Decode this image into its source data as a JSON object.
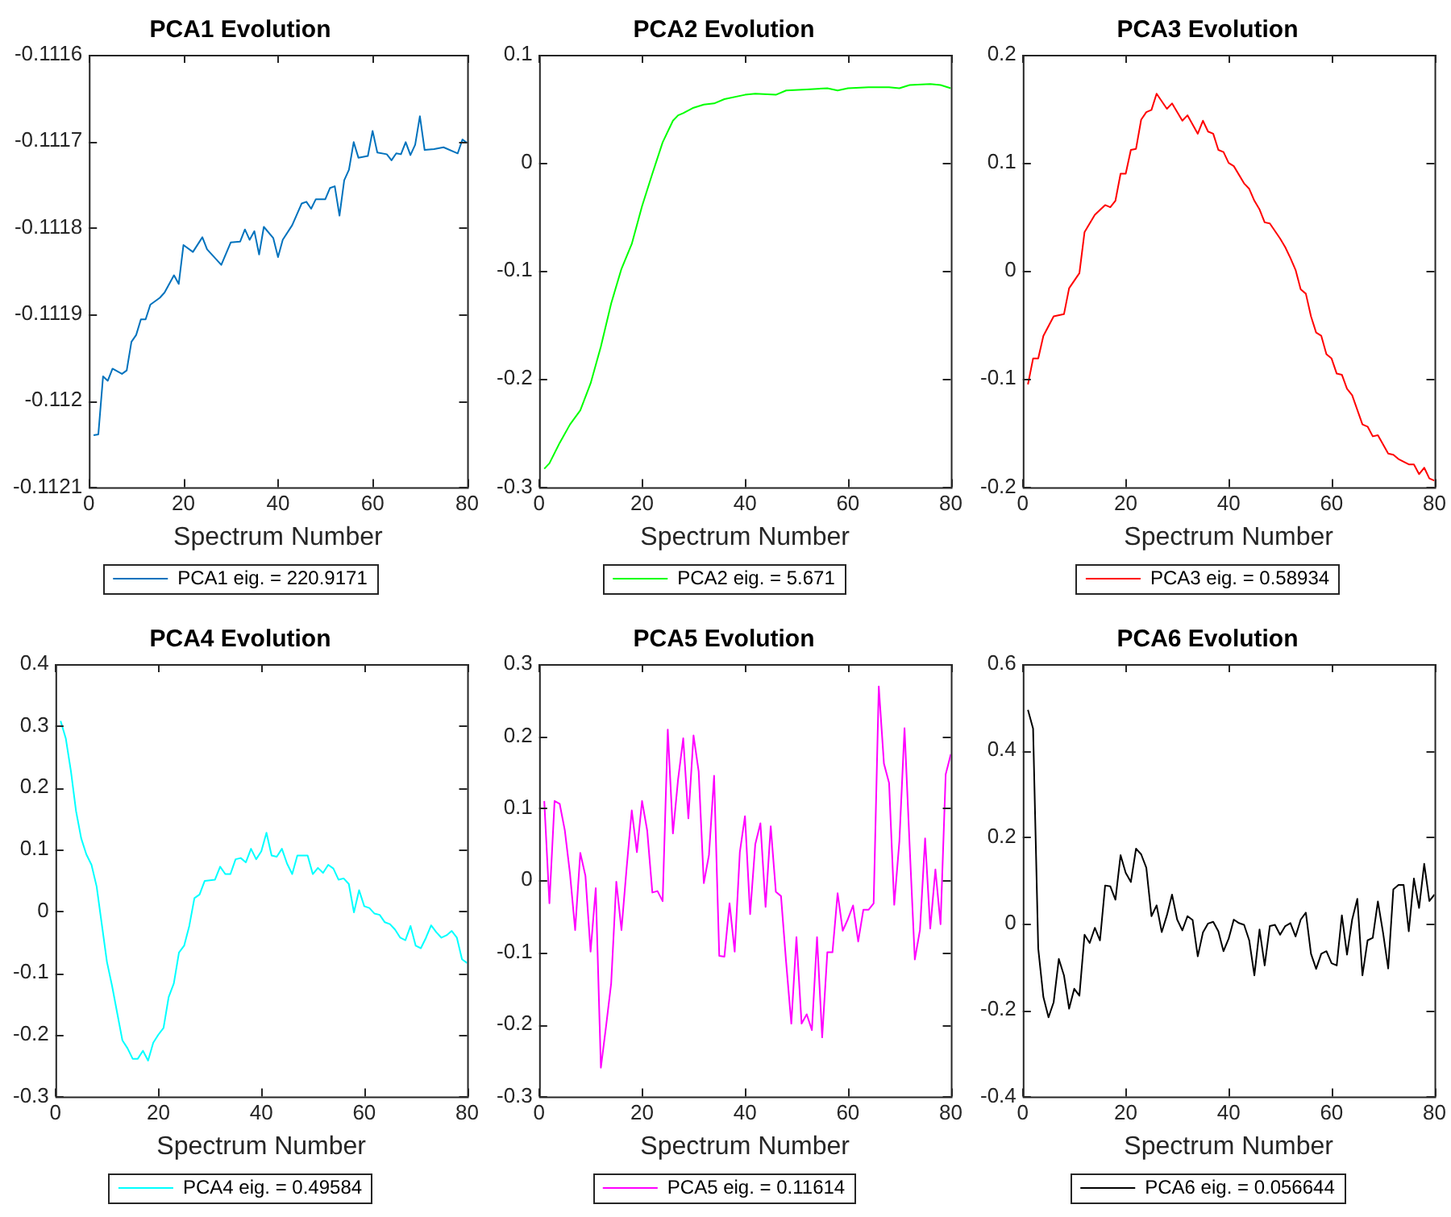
{
  "chart_data": [
    {
      "type": "line",
      "title": "PCA1 Evolution",
      "xlabel": "Spectrum Number",
      "legend": "bottom",
      "marker": "none",
      "line_style": "solid",
      "xlim": [
        0,
        80
      ],
      "xticks": [
        0,
        20,
        40,
        60,
        80
      ],
      "ylim": [
        -0.1121,
        -0.1116
      ],
      "yticks": [
        -0.1121,
        -0.112,
        -0.1119,
        -0.1118,
        -0.1117,
        -0.1116
      ],
      "x": [
        1,
        2,
        3,
        4,
        5,
        7,
        8,
        9,
        10,
        11,
        12,
        13,
        15,
        16,
        18,
        19,
        20,
        22,
        24,
        25,
        28,
        30,
        32,
        33,
        34,
        35,
        36,
        37,
        39,
        40,
        41,
        43,
        45,
        46,
        47,
        48,
        50,
        51,
        52,
        53,
        54,
        55,
        56,
        57,
        59,
        60,
        61,
        63,
        64,
        65,
        66,
        67,
        68,
        69,
        70,
        71,
        73,
        75,
        78,
        79,
        80
      ],
      "series": [
        {
          "name": "PCA1 eig. = 220.9171",
          "color": "#0072bd",
          "values": [
            -0.11204,
            -0.112039,
            -0.111972,
            -0.111977,
            -0.111963,
            -0.111969,
            -0.111965,
            -0.111932,
            -0.111924,
            -0.111906,
            -0.111906,
            -0.111889,
            -0.111881,
            -0.111875,
            -0.111855,
            -0.111865,
            -0.11182,
            -0.111828,
            -0.111811,
            -0.111825,
            -0.111843,
            -0.111817,
            -0.111816,
            -0.111802,
            -0.111814,
            -0.111804,
            -0.111831,
            -0.111799,
            -0.111812,
            -0.111834,
            -0.111814,
            -0.111797,
            -0.111772,
            -0.11177,
            -0.111778,
            -0.111767,
            -0.111767,
            -0.111754,
            -0.111752,
            -0.111786,
            -0.111745,
            -0.111733,
            -0.111701,
            -0.111719,
            -0.111717,
            -0.111688,
            -0.111713,
            -0.111715,
            -0.111722,
            -0.111714,
            -0.111715,
            -0.111701,
            -0.111716,
            -0.111704,
            -0.111671,
            -0.11171,
            -0.111709,
            -0.111707,
            -0.111714,
            -0.111698,
            -0.111702
          ]
        }
      ]
    },
    {
      "type": "line",
      "title": "PCA2 Evolution",
      "xlabel": "Spectrum Number",
      "legend": "bottom",
      "marker": "none",
      "line_style": "solid",
      "xlim": [
        0,
        80
      ],
      "xticks": [
        0,
        20,
        40,
        60,
        80
      ],
      "ylim": [
        -0.3,
        0.1
      ],
      "yticks": [
        -0.3,
        -0.2,
        -0.1,
        0,
        0.1
      ],
      "x": [
        1,
        2,
        4,
        6,
        8,
        10,
        12,
        14,
        16,
        18,
        20,
        22,
        24,
        26,
        27,
        28,
        30,
        32,
        34,
        36,
        40,
        42,
        46,
        48,
        52,
        56,
        58,
        60,
        64,
        68,
        70,
        72,
        76,
        78,
        80
      ],
      "series": [
        {
          "name": "PCA2 eig. = 5.671",
          "color": "#00ff00",
          "values": [
            -0.283,
            -0.278,
            -0.259,
            -0.242,
            -0.229,
            -0.204,
            -0.17,
            -0.13,
            -0.098,
            -0.075,
            -0.04,
            -0.01,
            0.019,
            0.039,
            0.044,
            0.046,
            0.051,
            0.054,
            0.055,
            0.059,
            0.063,
            0.064,
            0.063,
            0.067,
            0.068,
            0.069,
            0.067,
            0.069,
            0.07,
            0.07,
            0.069,
            0.072,
            0.073,
            0.072,
            0.069
          ]
        }
      ]
    },
    {
      "type": "line",
      "title": "PCA3 Evolution",
      "xlabel": "Spectrum Number",
      "legend": "bottom",
      "marker": "none",
      "line_style": "solid",
      "xlim": [
        0,
        80
      ],
      "xticks": [
        0,
        20,
        40,
        60,
        80
      ],
      "ylim": [
        -0.2,
        0.2
      ],
      "yticks": [
        -0.2,
        -0.1,
        0,
        0.1,
        0.2
      ],
      "x": [
        1,
        2,
        3,
        4,
        6,
        8,
        9,
        11,
        12,
        14,
        16,
        17,
        18,
        19,
        20,
        21,
        22,
        23,
        24,
        25,
        26,
        28,
        29,
        31,
        32,
        34,
        35,
        36,
        37,
        38,
        39,
        40,
        41,
        43,
        44,
        45,
        46,
        47,
        48,
        50,
        51,
        52,
        53,
        54,
        55,
        56,
        57,
        58,
        59,
        60,
        61,
        62,
        63,
        64,
        66,
        67,
        68,
        69,
        71,
        72,
        73,
        75,
        76,
        77,
        78,
        79,
        80
      ],
      "series": [
        {
          "name": "PCA3 eig. = 0.58934",
          "color": "#ff0000",
          "values": [
            -0.105,
            -0.081,
            -0.081,
            -0.06,
            -0.042,
            -0.04,
            -0.016,
            -0.002,
            0.036,
            0.052,
            0.061,
            0.059,
            0.065,
            0.09,
            0.09,
            0.112,
            0.113,
            0.14,
            0.147,
            0.149,
            0.164,
            0.15,
            0.155,
            0.139,
            0.144,
            0.127,
            0.139,
            0.129,
            0.127,
            0.112,
            0.11,
            0.1,
            0.097,
            0.081,
            0.076,
            0.065,
            0.057,
            0.045,
            0.044,
            0.03,
            0.022,
            0.012,
            0.001,
            -0.017,
            -0.021,
            -0.042,
            -0.057,
            -0.06,
            -0.077,
            -0.081,
            -0.095,
            -0.096,
            -0.109,
            -0.115,
            -0.142,
            -0.144,
            -0.153,
            -0.152,
            -0.169,
            -0.17,
            -0.174,
            -0.179,
            -0.179,
            -0.188,
            -0.182,
            -0.192,
            -0.194
          ]
        }
      ]
    },
    {
      "type": "line",
      "title": "PCA4 Evolution",
      "xlabel": "Spectrum Number",
      "legend": "bottom",
      "marker": "none",
      "line_style": "solid",
      "xlim": [
        0,
        80
      ],
      "xticks": [
        0,
        20,
        40,
        60,
        80
      ],
      "ylim": [
        -0.3,
        0.4
      ],
      "yticks": [
        -0.3,
        -0.2,
        -0.1,
        0,
        0.1,
        0.2,
        0.3,
        0.4
      ],
      "x": [
        1,
        2,
        3,
        4,
        5,
        6,
        7,
        8,
        9,
        10,
        11,
        12,
        13,
        14,
        15,
        16,
        17,
        18,
        19,
        20,
        21,
        22,
        23,
        24,
        25,
        26,
        27,
        28,
        29,
        31,
        32,
        33,
        34,
        35,
        36,
        37,
        38,
        39,
        40,
        41,
        42,
        43,
        44,
        45,
        46,
        47,
        49,
        50,
        51,
        52,
        53,
        54,
        55,
        56,
        57,
        58,
        59,
        60,
        61,
        62,
        63,
        64,
        65,
        66,
        67,
        68,
        69,
        70,
        71,
        72,
        73,
        74,
        75,
        76,
        77,
        78,
        79,
        80
      ],
      "series": [
        {
          "name": "PCA4 eig. = 0.49584",
          "color": "#00ffff",
          "values": [
            0.308,
            0.28,
            0.227,
            0.162,
            0.118,
            0.092,
            0.075,
            0.04,
            -0.021,
            -0.082,
            -0.121,
            -0.165,
            -0.209,
            -0.222,
            -0.239,
            -0.239,
            -0.226,
            -0.242,
            -0.213,
            -0.2,
            -0.189,
            -0.139,
            -0.117,
            -0.067,
            -0.056,
            -0.024,
            0.021,
            0.027,
            0.049,
            0.051,
            0.072,
            0.06,
            0.06,
            0.084,
            0.086,
            0.079,
            0.101,
            0.084,
            0.097,
            0.127,
            0.09,
            0.088,
            0.101,
            0.077,
            0.06,
            0.09,
            0.09,
            0.06,
            0.07,
            0.062,
            0.075,
            0.069,
            0.051,
            0.053,
            0.044,
            -0.002,
            0.034,
            0.008,
            0.005,
            -0.004,
            -0.006,
            -0.018,
            -0.021,
            -0.03,
            -0.043,
            -0.047,
            -0.024,
            -0.056,
            -0.06,
            -0.043,
            -0.023,
            -0.034,
            -0.043,
            -0.039,
            -0.032,
            -0.043,
            -0.078,
            -0.084
          ]
        }
      ]
    },
    {
      "type": "line",
      "title": "PCA5 Evolution",
      "xlabel": "Spectrum Number",
      "legend": "bottom",
      "marker": "none",
      "line_style": "solid",
      "xlim": [
        0,
        80
      ],
      "xticks": [
        0,
        20,
        40,
        60,
        80
      ],
      "ylim": [
        -0.3,
        0.3
      ],
      "yticks": [
        -0.3,
        -0.2,
        -0.1,
        0,
        0.1,
        0.2,
        0.3
      ],
      "x": [
        1,
        2,
        3,
        4,
        5,
        6,
        7,
        8,
        9,
        10,
        11,
        12,
        13,
        14,
        15,
        16,
        17,
        18,
        19,
        20,
        21,
        22,
        23,
        24,
        25,
        26,
        27,
        28,
        29,
        30,
        31,
        32,
        33,
        34,
        35,
        36,
        37,
        38,
        39,
        40,
        41,
        42,
        43,
        44,
        45,
        46,
        47,
        48,
        49,
        50,
        51,
        52,
        53,
        54,
        55,
        56,
        57,
        58,
        59,
        60,
        61,
        62,
        63,
        64,
        65,
        66,
        67,
        68,
        69,
        70,
        71,
        72,
        73,
        74,
        75,
        76,
        77,
        78,
        79,
        80
      ],
      "series": [
        {
          "name": "PCA5 eig. = 0.11614",
          "color": "#ff00ff",
          "values": [
            0.11,
            -0.032,
            0.11,
            0.106,
            0.069,
            0.009,
            -0.069,
            0.038,
            0.006,
            -0.099,
            -0.011,
            -0.26,
            -0.203,
            -0.143,
            -0.002,
            -0.069,
            0.017,
            0.097,
            0.039,
            0.11,
            0.069,
            -0.017,
            -0.015,
            -0.029,
            0.209,
            0.065,
            0.14,
            0.197,
            0.086,
            0.201,
            0.151,
            -0.004,
            0.035,
            0.145,
            -0.105,
            -0.106,
            -0.032,
            -0.099,
            0.039,
            0.089,
            -0.047,
            0.05,
            0.079,
            -0.037,
            0.075,
            -0.016,
            -0.022,
            -0.114,
            -0.199,
            -0.079,
            -0.199,
            -0.186,
            -0.208,
            -0.079,
            -0.218,
            -0.1,
            -0.1,
            -0.018,
            -0.07,
            -0.054,
            -0.035,
            -0.085,
            -0.041,
            -0.041,
            -0.032,
            0.269,
            0.162,
            0.135,
            -0.034,
            0.054,
            0.211,
            0.047,
            -0.11,
            -0.069,
            0.058,
            -0.067,
            0.015,
            -0.061,
            0.147,
            0.175
          ]
        }
      ]
    },
    {
      "type": "line",
      "title": "PCA6 Evolution",
      "xlabel": "Spectrum Number",
      "legend": "bottom",
      "marker": "none",
      "line_style": "solid",
      "xlim": [
        0,
        80
      ],
      "xticks": [
        0,
        20,
        40,
        60,
        80
      ],
      "ylim": [
        -0.4,
        0.6
      ],
      "yticks": [
        -0.4,
        -0.2,
        0,
        0.2,
        0.4,
        0.6
      ],
      "x": [
        1,
        2,
        3,
        4,
        5,
        6,
        7,
        8,
        9,
        10,
        11,
        12,
        13,
        14,
        15,
        16,
        17,
        18,
        19,
        20,
        21,
        22,
        23,
        24,
        25,
        26,
        27,
        28,
        29,
        30,
        31,
        32,
        33,
        34,
        35,
        36,
        37,
        38,
        39,
        40,
        41,
        42,
        43,
        44,
        45,
        46,
        47,
        48,
        49,
        50,
        51,
        52,
        53,
        54,
        55,
        56,
        57,
        58,
        59,
        60,
        61,
        62,
        63,
        64,
        65,
        66,
        67,
        68,
        69,
        70,
        71,
        72,
        73,
        74,
        75,
        76,
        77,
        78,
        79,
        80
      ],
      "series": [
        {
          "name": "PCA6 eig. = 0.056644",
          "color": "#000000",
          "values": [
            0.494,
            0.451,
            -0.058,
            -0.17,
            -0.217,
            -0.182,
            -0.082,
            -0.12,
            -0.197,
            -0.151,
            -0.167,
            -0.026,
            -0.045,
            -0.01,
            -0.039,
            0.088,
            0.086,
            0.055,
            0.158,
            0.117,
            0.096,
            0.173,
            0.16,
            0.129,
            0.017,
            0.042,
            -0.02,
            0.019,
            0.067,
            0.009,
            -0.016,
            0.017,
            0.008,
            -0.076,
            -0.021,
            0.0,
            0.004,
            -0.018,
            -0.064,
            -0.035,
            0.009,
            0.001,
            -0.003,
            -0.039,
            -0.12,
            -0.014,
            -0.097,
            -0.006,
            -0.003,
            -0.026,
            -0.006,
            0.001,
            -0.03,
            0.009,
            0.025,
            -0.07,
            -0.105,
            -0.07,
            -0.064,
            -0.092,
            -0.097,
            0.019,
            -0.072,
            0.009,
            0.057,
            -0.12,
            -0.039,
            -0.033,
            0.051,
            -0.021,
            -0.104,
            0.079,
            0.089,
            0.089,
            -0.018,
            0.104,
            0.036,
            0.138,
            0.052,
            0.067
          ]
        }
      ]
    }
  ]
}
